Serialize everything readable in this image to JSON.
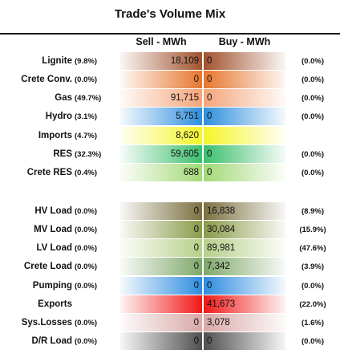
{
  "title": "Trade's Volume Mix",
  "headers": {
    "sell": "Sell - MWh",
    "buy": "Buy - MWh"
  },
  "rows": [
    {
      "label": "Lignite",
      "sell_pct": "(9.8%)",
      "sell": "18,109",
      "buy": "0",
      "buy_pct": "(0.0%)",
      "color": "#a0522d",
      "sell_fill": 0.35,
      "buy_fill": 0.35
    },
    {
      "label": "Crete Conv.",
      "sell_pct": "(0.0%)",
      "sell": "0",
      "buy": "0",
      "buy_pct": "(0.0%)",
      "color": "#e6762e",
      "sell_fill": 1,
      "buy_fill": 1
    },
    {
      "label": "Gas",
      "sell_pct": "(49.7%)",
      "sell": "91,715",
      "buy": "0",
      "buy_pct": "(0.0%)",
      "color": "#f4a57a",
      "sell_fill": 0.45,
      "buy_fill": 0.45
    },
    {
      "label": "Hydro",
      "sell_pct": "(3.1%)",
      "sell": "5,751",
      "buy": "0",
      "buy_pct": "(0.0%)",
      "color": "#2f8fdd",
      "sell_fill": 1,
      "buy_fill": 1
    },
    {
      "label": "Imports",
      "sell_pct": "(4.7%)",
      "sell": "8,620",
      "buy": "",
      "buy_pct": "",
      "color": "#f5f52a",
      "sell_fill": 1,
      "buy_fill": 1
    },
    {
      "label": "RES",
      "sell_pct": "(32.3%)",
      "sell": "59,605",
      "buy": "0",
      "buy_pct": "(0.0%)",
      "color": "#3cbf6e",
      "sell_fill": 0.45,
      "buy_fill": 0.45
    },
    {
      "label": "Crete RES",
      "sell_pct": "(0.4%)",
      "sell": "688",
      "buy": "0",
      "buy_pct": "(0.0%)",
      "color": "#a3d977",
      "sell_fill": 0.45,
      "buy_fill": 0.45
    },
    {
      "label": "HV Load",
      "sell_pct": "(0.0%)",
      "sell": "0",
      "buy": "16,838",
      "buy_pct": "(8.9%)",
      "color": "#7a7040",
      "sell_fill": 1,
      "buy_fill": 1
    },
    {
      "label": "MV Load",
      "sell_pct": "(0.0%)",
      "sell": "0",
      "buy": "30,084",
      "buy_pct": "(15.9%)",
      "color": "#8a9a4a",
      "sell_fill": 0.9,
      "buy_fill": 0.9
    },
    {
      "label": "LV Load",
      "sell_pct": "(0.0%)",
      "sell": "0",
      "buy": "89,981",
      "buy_pct": "(47.6%)",
      "color": "#b7cf8a",
      "sell_fill": 0.9,
      "buy_fill": 0.9
    },
    {
      "label": "Crete Load",
      "sell_pct": "(0.0%)",
      "sell": "0",
      "buy": "7,342",
      "buy_pct": "(3.9%)",
      "color": "#7fa86a",
      "sell_fill": 0.9,
      "buy_fill": 0.9
    },
    {
      "label": "Pumping",
      "sell_pct": "(0.0%)",
      "sell": "0",
      "buy": "0",
      "buy_pct": "(0.0%)",
      "color": "#2d8ce0",
      "sell_fill": 1,
      "buy_fill": 1
    },
    {
      "label": "Exports",
      "sell_pct": "",
      "sell": "",
      "buy": "41,673",
      "buy_pct": "(22.0%)",
      "color": "#f21818",
      "sell_fill": 1,
      "buy_fill": 1
    },
    {
      "label": "Sys.Losses",
      "sell_pct": "(0.0%)",
      "sell": "0",
      "buy": "3,078",
      "buy_pct": "(1.6%)",
      "color": "#d9a8a8",
      "sell_fill": 1,
      "buy_fill": 1
    },
    {
      "label": "D/R Load",
      "sell_pct": "(0.0%)",
      "sell": "0",
      "buy": "0",
      "buy_pct": "(0.0%)",
      "color": "#505050",
      "sell_fill": 1,
      "buy_fill": 1
    }
  ]
}
